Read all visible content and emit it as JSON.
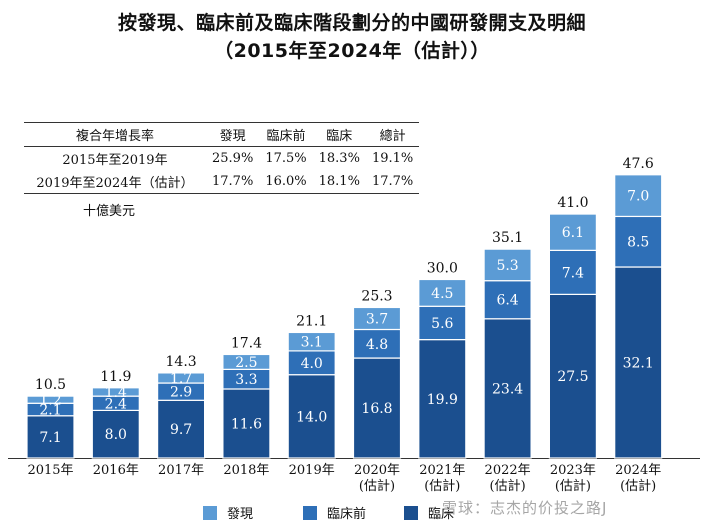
{
  "title_line1": "按發現、臨床前及臨床階段劃分的中國研發開支及明細",
  "title_line2": "（2015年至2024年（估計））",
  "cagr_table": {
    "headers": [
      "複合年增長率",
      "發現",
      "臨床前",
      "臨床",
      "總計"
    ],
    "rows": [
      [
        "2015年至2019年",
        "25.9%",
        "17.5%",
        "18.3%",
        "19.1%"
      ],
      [
        "2019年至2024年（估計）",
        "17.7%",
        "16.0%",
        "18.1%",
        "17.7%"
      ]
    ]
  },
  "unit_label": "十億美元",
  "legend": [
    {
      "label": "發現",
      "color": "#5b9bd5"
    },
    {
      "label": "臨床前",
      "color": "#2e6fb7"
    },
    {
      "label": "臨床",
      "color": "#1b4f8f"
    }
  ],
  "watermark": "雪球：志杰的价投之路J",
  "chart_data": {
    "type": "bar",
    "stacked": true,
    "categories": [
      "2015年",
      "2016年",
      "2017年",
      "2018年",
      "2019年",
      "2020年\n(估計)",
      "2021年\n(估計)",
      "2022年\n(估計)",
      "2023年\n(估計)",
      "2024年\n(估計)"
    ],
    "series": [
      {
        "name": "臨床",
        "values": [
          7.1,
          8.0,
          9.7,
          11.6,
          14.0,
          16.8,
          19.9,
          23.4,
          27.5,
          32.1
        ],
        "color": "#1b4f8f"
      },
      {
        "name": "臨床前",
        "values": [
          2.1,
          2.4,
          2.9,
          3.3,
          4.0,
          4.8,
          5.6,
          6.4,
          7.4,
          8.5
        ],
        "color": "#2e6fb7"
      },
      {
        "name": "發現",
        "values": [
          1.2,
          1.4,
          1.7,
          2.5,
          3.1,
          3.7,
          4.5,
          5.3,
          6.1,
          7.0
        ],
        "color": "#5b9bd5"
      }
    ],
    "totals": [
      10.5,
      11.9,
      14.3,
      17.4,
      21.1,
      25.3,
      30.0,
      35.1,
      41.0,
      47.6
    ],
    "ylim": [
      0,
      50
    ]
  }
}
